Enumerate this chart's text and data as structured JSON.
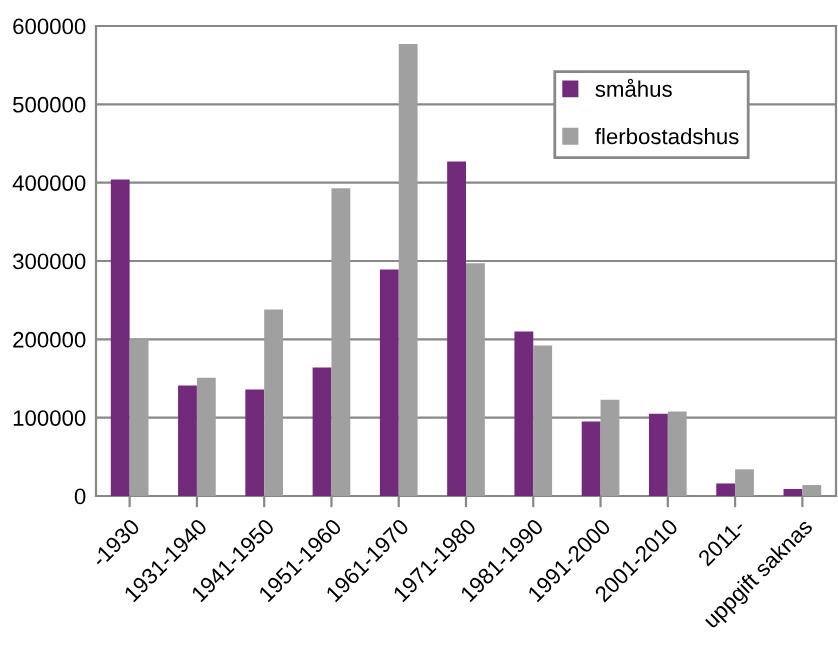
{
  "chart_data": {
    "type": "bar",
    "categories": [
      "-1930",
      "1931-1940",
      "1941-1950",
      "1951-1960",
      "1961-1970",
      "1971-1980",
      "1981-1990",
      "1991-2000",
      "2001-2010",
      "2011-",
      "uppgift saknas"
    ],
    "series": [
      {
        "name": "småhus",
        "color": "#722a7a",
        "values": [
          404000,
          141000,
          136000,
          164000,
          289000,
          427000,
          210000,
          95000,
          105000,
          16000,
          9000
        ]
      },
      {
        "name": "flerbostadshus",
        "color": "#a0a0a0",
        "values": [
          200000,
          151000,
          238000,
          393000,
          577000,
          297000,
          192000,
          123000,
          108000,
          34000,
          14000
        ]
      }
    ],
    "ylim": [
      0,
      600000
    ],
    "yticks": [
      0,
      100000,
      200000,
      300000,
      400000,
      500000,
      600000
    ],
    "grid": "y",
    "legend": "top right"
  }
}
